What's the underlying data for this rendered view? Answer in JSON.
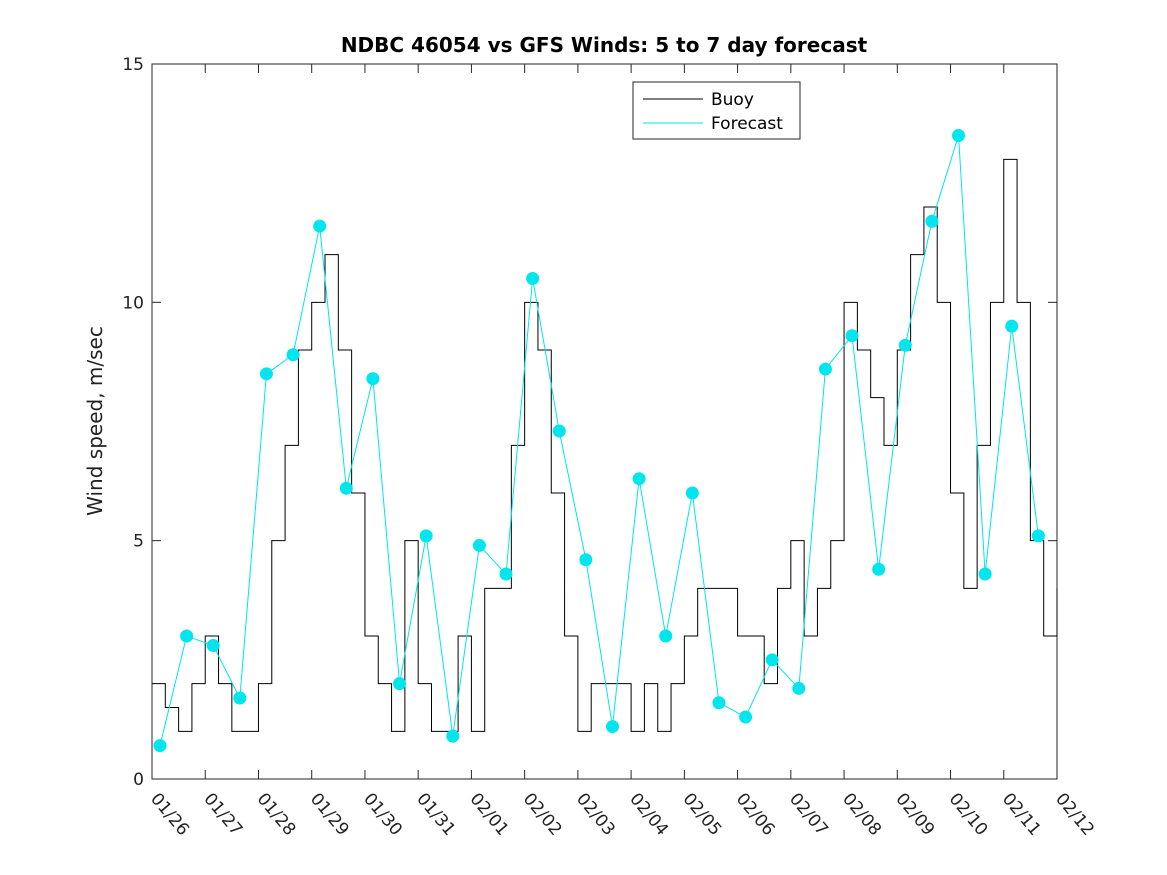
{
  "chart_data": {
    "type": "line",
    "title": "NDBC 46054 vs GFS Winds: 5 to 7 day forecast",
    "xlabel": "",
    "ylabel": "Wind speed, m/sec",
    "xlim": [
      0,
      17
    ],
    "ylim": [
      0,
      15
    ],
    "x_ticks": [
      0,
      1,
      2,
      3,
      4,
      5,
      6,
      7,
      8,
      9,
      10,
      11,
      12,
      13,
      14,
      15,
      16,
      17
    ],
    "x_tick_labels": [
      "01/26",
      "01/27",
      "01/28",
      "01/29",
      "01/30",
      "01/31",
      "02/01",
      "02/02",
      "02/03",
      "02/04",
      "02/05",
      "02/06",
      "02/07",
      "02/08",
      "02/09",
      "02/10",
      "02/11",
      "02/12"
    ],
    "y_ticks": [
      0,
      5,
      10,
      15
    ],
    "y_tick_labels": [
      "0",
      "5",
      "10",
      "15"
    ],
    "legend": {
      "location": "top-center",
      "entries": [
        "Buoy",
        "Forecast"
      ]
    },
    "colors": {
      "buoy": "#000000",
      "forecast": "#00e5ee"
    },
    "series": [
      {
        "name": "Buoy",
        "x": [
          0,
          0.25,
          0.5,
          0.75,
          1,
          1.25,
          1.5,
          1.75,
          2,
          2.25,
          2.5,
          2.75,
          3,
          3.25,
          3.5,
          3.75,
          4,
          4.25,
          4.5,
          4.75,
          5,
          5.25,
          5.5,
          5.75,
          6,
          6.25,
          6.5,
          6.75,
          7,
          7.25,
          7.5,
          7.75,
          8,
          8.25,
          8.5,
          8.75,
          9,
          9.25,
          9.5,
          9.75,
          10,
          10.25,
          10.5,
          10.75,
          11,
          11.25,
          11.5,
          11.75,
          12,
          12.25,
          12.5,
          12.75,
          13,
          13.25,
          13.5,
          13.75,
          14,
          14.25,
          14.5,
          14.75,
          15,
          15.25,
          15.5,
          15.75,
          16,
          16.25,
          16.5,
          16.75,
          17
        ],
        "values": [
          2,
          1.5,
          1,
          2,
          3,
          2,
          1,
          1,
          2,
          5,
          7,
          9,
          10,
          11,
          9,
          6,
          3,
          2,
          1,
          5,
          2,
          1,
          1,
          3,
          1,
          4,
          4,
          7,
          10,
          9,
          6,
          3,
          1,
          2,
          2,
          2,
          1,
          2,
          1,
          2,
          3,
          4,
          4,
          4,
          3,
          3,
          2,
          4,
          5,
          3,
          4,
          5,
          10,
          9,
          8,
          7,
          9,
          11,
          12,
          10,
          6,
          4,
          7,
          10,
          13,
          10,
          5,
          3,
          4
        ]
      },
      {
        "name": "Forecast",
        "x": [
          0.15,
          0.65,
          1.15,
          1.65,
          2.15,
          2.65,
          3.15,
          3.65,
          4.15,
          4.65,
          5.15,
          5.65,
          6.15,
          6.65,
          7.15,
          7.65,
          8.15,
          8.65,
          9.15,
          9.65,
          10.15,
          10.65,
          11.15,
          11.65,
          12.15,
          12.65,
          13.15,
          13.65,
          14.15,
          14.65,
          15.15,
          15.65,
          16.15,
          16.65
        ],
        "values": [
          0.7,
          3.0,
          2.8,
          1.7,
          8.5,
          8.9,
          11.6,
          6.1,
          8.4,
          2.0,
          5.1,
          0.9,
          4.9,
          4.3,
          10.5,
          7.3,
          4.6,
          1.1,
          6.3,
          3.0,
          6.0,
          1.6,
          1.3,
          2.5,
          1.9,
          8.6,
          9.3,
          4.4,
          9.1,
          11.7,
          13.5,
          4.3,
          9.5,
          5.1
        ]
      }
    ]
  }
}
